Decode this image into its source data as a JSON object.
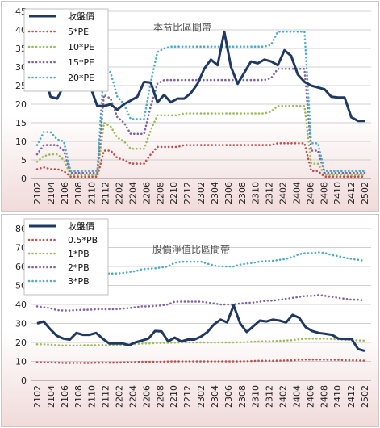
{
  "colors": {
    "price": "#1f3864",
    "pe5": "#c0504d",
    "pe10": "#9bbb59",
    "pe15": "#8064a2",
    "pe20": "#4bacc6",
    "pb05": "#c0504d",
    "pb1": "#9bbb59",
    "pb2": "#8064a2",
    "pb3": "#4bacc6"
  },
  "chart_data": [
    {
      "type": "line",
      "title": "本益比區間帶",
      "xlabel": "",
      "ylabel": "",
      "ylim": [
        0,
        45
      ],
      "yticks": [
        "0",
        "5",
        "10",
        "15",
        "20",
        "25",
        "30",
        "35",
        "40",
        "45"
      ],
      "grid": "horizontal",
      "legend_position": "top-left",
      "x_tick_labels": [
        "2102",
        "2104",
        "2106",
        "2108",
        "2110",
        "2112",
        "2202",
        "2204",
        "2206",
        "2208",
        "2210",
        "2212",
        "2302",
        "2304",
        "2306",
        "2308",
        "2310",
        "2312",
        "2402",
        "2404",
        "2406",
        "2408",
        "2410",
        "2412",
        "2502"
      ],
      "series": [
        {
          "name": "收盤價",
          "style": "solid",
          "values": [
            30.0,
            29.0,
            22.0,
            21.5,
            25.0,
            24.5,
            24.0,
            25.0,
            24.5,
            19.5,
            19.5,
            20.0,
            18.5,
            20.0,
            21.0,
            22.0,
            26.0,
            25.8,
            20.5,
            22.5,
            20.5,
            21.5,
            21.5,
            23.0,
            25.5,
            29.5,
            32.0,
            30.5,
            39.5,
            30.0,
            25.5,
            28.5,
            31.5,
            31.0,
            32.0,
            31.5,
            30.5,
            34.5,
            33.0,
            28.0,
            26.0,
            25.0,
            24.5,
            24.0,
            22.0,
            21.8,
            21.8,
            16.5,
            15.5,
            15.5
          ]
        },
        {
          "name": "5*PE",
          "style": "dotted",
          "values": [
            2.5,
            3.0,
            2.5,
            2.5,
            2.0,
            0.5,
            0.5,
            0.5,
            0.5,
            0.5,
            7.5,
            7.5,
            5.5,
            5.0,
            4.0,
            4.0,
            4.0,
            6.5,
            8.5,
            8.5,
            8.5,
            8.5,
            9.0,
            9.0,
            9.0,
            9.0,
            9.0,
            9.0,
            9.0,
            9.0,
            9.0,
            9.0,
            9.0,
            9.0,
            9.0,
            9.0,
            9.5,
            9.5,
            9.5,
            9.5,
            9.5,
            2.0,
            2.0,
            0.5,
            0.5,
            0.5,
            0.5,
            0.5,
            0.5,
            0.5
          ]
        },
        {
          "name": "10*PE",
          "style": "dotted",
          "values": [
            4.5,
            6.0,
            6.5,
            6.5,
            5.0,
            1.0,
            1.0,
            1.0,
            1.0,
            1.0,
            15.0,
            14.0,
            11.0,
            10.0,
            8.0,
            8.0,
            8.0,
            13.0,
            17.0,
            17.0,
            17.0,
            17.0,
            17.5,
            17.5,
            17.5,
            17.5,
            17.5,
            17.5,
            17.5,
            17.5,
            17.5,
            17.5,
            17.5,
            17.5,
            17.5,
            18.0,
            19.5,
            19.5,
            19.5,
            19.5,
            19.5,
            4.0,
            4.0,
            1.0,
            1.0,
            1.0,
            1.0,
            1.0,
            1.0,
            1.0
          ]
        },
        {
          "name": "15*PE",
          "style": "dotted",
          "values": [
            6.5,
            9.0,
            9.0,
            9.0,
            7.5,
            1.5,
            1.5,
            1.5,
            1.5,
            1.5,
            22.5,
            21.5,
            16.5,
            15.0,
            12.0,
            12.0,
            12.0,
            19.5,
            25.5,
            26.5,
            26.5,
            26.5,
            26.5,
            26.5,
            26.5,
            26.5,
            26.5,
            26.5,
            26.5,
            26.5,
            26.5,
            26.5,
            26.5,
            26.5,
            26.5,
            27.0,
            29.5,
            29.5,
            29.5,
            29.5,
            29.5,
            7.5,
            7.5,
            1.5,
            1.5,
            1.5,
            1.5,
            1.5,
            1.5,
            1.5
          ]
        },
        {
          "name": "20*PE",
          "style": "dotted",
          "values": [
            9.0,
            12.5,
            12.5,
            10.5,
            10.0,
            2.0,
            2.0,
            2.0,
            2.0,
            2.0,
            30.5,
            28.5,
            22.0,
            20.0,
            16.0,
            16.0,
            16.0,
            26.0,
            34.0,
            35.0,
            35.5,
            35.5,
            35.5,
            35.5,
            35.5,
            35.5,
            35.5,
            35.5,
            35.5,
            35.5,
            35.5,
            35.5,
            35.5,
            35.5,
            35.5,
            36.0,
            39.5,
            39.5,
            39.5,
            39.5,
            39.5,
            9.5,
            9.5,
            2.0,
            2.0,
            2.0,
            2.0,
            2.0,
            2.0,
            2.0
          ]
        }
      ]
    },
    {
      "type": "line",
      "title": "股價淨值比區間帶",
      "xlabel": "",
      "ylabel": "",
      "ylim": [
        0,
        80
      ],
      "yticks": [
        "0",
        "10",
        "20",
        "30",
        "40",
        "50",
        "60",
        "70",
        "80"
      ],
      "grid": "horizontal",
      "legend_position": "top-left",
      "x_tick_labels": [
        "2102",
        "2104",
        "2106",
        "2108",
        "2110",
        "2112",
        "2202",
        "2204",
        "2206",
        "2208",
        "2210",
        "2212",
        "2302",
        "2304",
        "2306",
        "2308",
        "2310",
        "2312",
        "2402",
        "2404",
        "2406",
        "2408",
        "2410",
        "2412",
        "2502"
      ],
      "series": [
        {
          "name": "收盤價",
          "style": "solid",
          "values": [
            30.0,
            31.0,
            27.0,
            23.5,
            22.0,
            21.5,
            25.0,
            24.0,
            24.0,
            25.0,
            22.0,
            19.5,
            19.5,
            19.5,
            18.5,
            20.0,
            21.0,
            22.0,
            26.0,
            25.8,
            20.5,
            22.5,
            20.5,
            21.5,
            21.5,
            23.0,
            25.5,
            29.5,
            32.0,
            30.5,
            39.5,
            30.0,
            25.5,
            28.5,
            31.5,
            31.0,
            32.0,
            31.5,
            30.5,
            34.5,
            33.0,
            28.0,
            26.0,
            25.0,
            24.5,
            24.0,
            22.0,
            21.8,
            21.8,
            16.5,
            15.5
          ]
        },
        {
          "name": "0.5*PB",
          "style": "dotted",
          "values": [
            9.5,
            9.5,
            9.5,
            9.3,
            9.2,
            9.2,
            9.2,
            9.2,
            9.2,
            9.3,
            9.3,
            9.3,
            9.3,
            9.4,
            9.5,
            9.6,
            9.8,
            9.8,
            9.8,
            9.8,
            9.9,
            10.0,
            10.0,
            10.0,
            10.0,
            10.0,
            10.0,
            10.0,
            10.0,
            10.0,
            10.0,
            10.0,
            10.1,
            10.2,
            10.3,
            10.3,
            10.3,
            10.4,
            10.5,
            10.5,
            10.8,
            11.0,
            11.0,
            11.0,
            10.9,
            10.9,
            10.8,
            10.6,
            10.6,
            10.5,
            10.4
          ]
        },
        {
          "name": "1*PB",
          "style": "dotted",
          "values": [
            19.0,
            19.0,
            18.8,
            18.5,
            18.4,
            18.4,
            18.4,
            18.5,
            18.5,
            18.5,
            18.6,
            18.6,
            18.7,
            18.8,
            19.0,
            19.2,
            19.4,
            19.5,
            19.6,
            19.7,
            19.8,
            19.9,
            20.0,
            20.0,
            20.0,
            20.0,
            20.0,
            20.0,
            20.0,
            20.0,
            20.0,
            20.1,
            20.2,
            20.4,
            20.5,
            20.6,
            20.7,
            20.8,
            21.0,
            21.2,
            21.6,
            22.0,
            22.0,
            22.0,
            21.9,
            21.8,
            21.6,
            21.4,
            21.3,
            21.1,
            20.9
          ]
        },
        {
          "name": "2*PB",
          "style": "dotted",
          "values": [
            39.0,
            38.5,
            38.0,
            37.0,
            36.8,
            36.8,
            37.0,
            37.2,
            37.2,
            37.5,
            37.5,
            37.5,
            37.5,
            37.8,
            38.0,
            38.5,
            39.0,
            39.0,
            39.2,
            39.5,
            40.0,
            41.5,
            41.5,
            41.5,
            41.5,
            41.5,
            41.0,
            40.5,
            40.0,
            40.0,
            40.0,
            40.5,
            40.8,
            41.0,
            41.5,
            42.0,
            42.0,
            42.5,
            43.0,
            43.5,
            44.0,
            44.5,
            44.5,
            45.0,
            44.5,
            44.0,
            43.5,
            43.0,
            42.5,
            42.5,
            42.0
          ]
        },
        {
          "name": "3*PB",
          "style": "dotted",
          "values": [
            58.5,
            57.5,
            57.0,
            55.5,
            55.2,
            55.2,
            55.5,
            55.5,
            55.8,
            56.0,
            56.2,
            56.3,
            56.3,
            56.5,
            57.0,
            57.5,
            58.5,
            58.8,
            59.0,
            59.5,
            60.0,
            62.0,
            62.5,
            62.5,
            62.5,
            62.5,
            61.5,
            60.5,
            60.0,
            60.0,
            60.0,
            61.0,
            61.5,
            62.0,
            62.5,
            63.0,
            63.0,
            63.5,
            64.0,
            65.0,
            66.5,
            67.0,
            67.0,
            67.5,
            67.0,
            66.0,
            65.5,
            64.5,
            64.0,
            63.5,
            63.0
          ]
        }
      ]
    }
  ]
}
